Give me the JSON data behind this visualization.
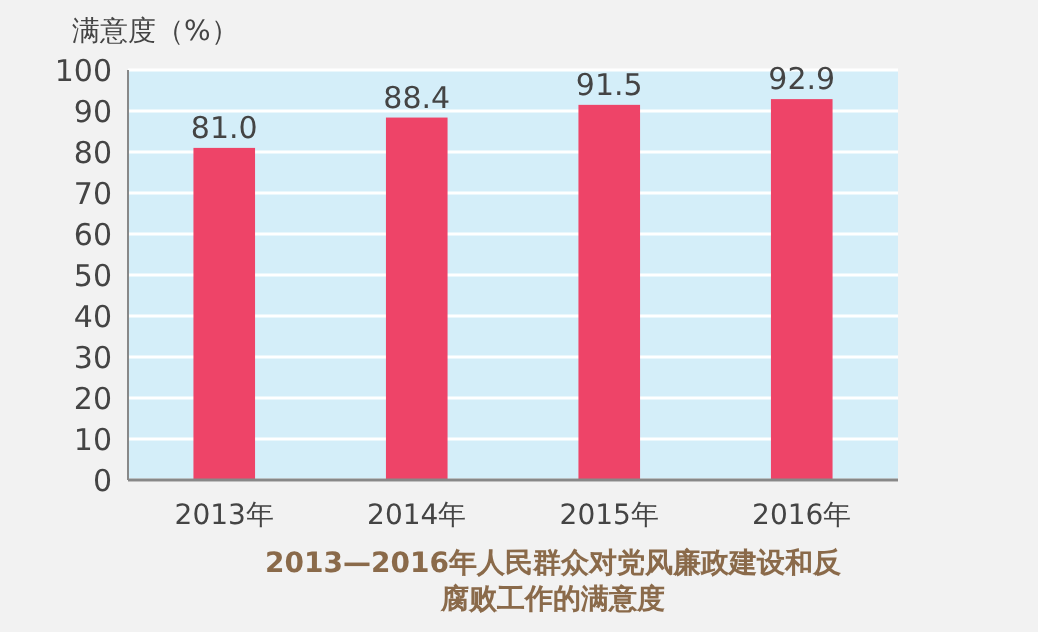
{
  "chart_data": {
    "type": "bar",
    "title": "2013—2016年人民群众对党风廉政建设和反腐败工作的满意度",
    "ylabel": "满意度（%）",
    "categories": [
      "2013年",
      "2014年",
      "2015年",
      "2016年"
    ],
    "values": [
      81.0,
      88.4,
      91.5,
      92.9
    ],
    "color": "#ee4468",
    "value_labels": [
      "81.0",
      "88.4",
      "91.5",
      "92.9"
    ],
    "ylim": [
      0,
      100
    ],
    "yticks": [
      0,
      10,
      20,
      30,
      40,
      50,
      60,
      70,
      80,
      90,
      100
    ],
    "grid": "y"
  }
}
